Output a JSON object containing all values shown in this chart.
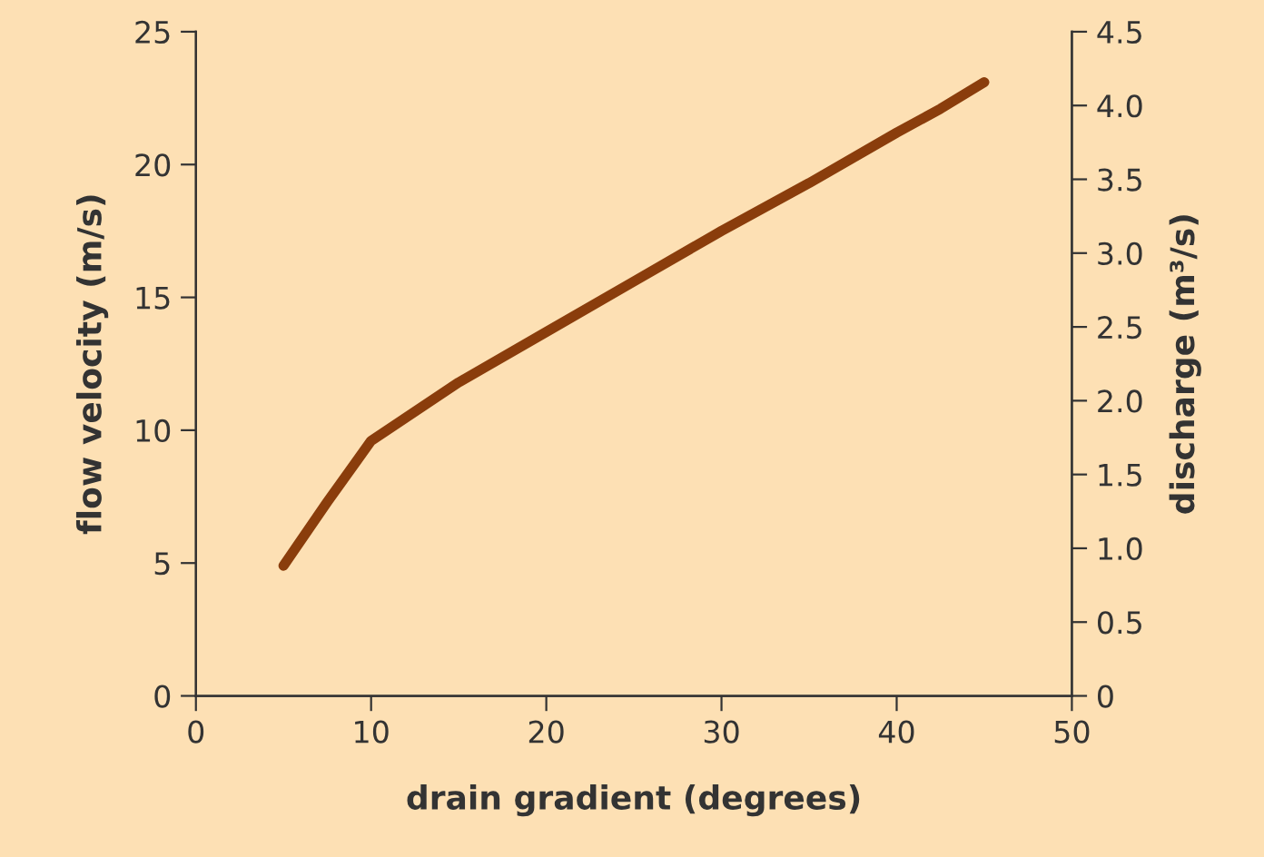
{
  "chart_data": {
    "type": "line",
    "xlabel": "drain gradient (degrees)",
    "ylabel": "flow velocity (m/s)",
    "y2label": "discharge (m³/s)",
    "x": [
      5,
      7.5,
      10,
      15,
      20,
      25,
      30,
      35,
      40,
      42.5,
      45
    ],
    "series": [
      {
        "color": "#8a3d0c",
        "values": [
          4.9,
          7.3,
          9.6,
          11.8,
          13.7,
          15.6,
          17.5,
          19.3,
          21.2,
          22.1,
          23.1
        ]
      }
    ],
    "xlim": [
      0,
      50
    ],
    "xticks": [
      0,
      10,
      20,
      30,
      40,
      50
    ],
    "ylim": [
      0,
      25
    ],
    "yticks": [
      0,
      5,
      10,
      15,
      20,
      25
    ],
    "y2lim": [
      0,
      4.5
    ],
    "y2ticks": [
      0,
      {
        "value": 0.5,
        "label": "0.5"
      },
      {
        "value": 1,
        "label": "1.0"
      },
      {
        "value": 1.5,
        "label": "1.5"
      },
      {
        "value": 2,
        "label": "2.0"
      },
      {
        "value": 2.5,
        "label": "2.5"
      },
      {
        "value": 3,
        "label": "3.0"
      },
      {
        "value": 3.5,
        "label": "3.5"
      },
      {
        "value": 4,
        "label": "4.0"
      },
      {
        "value": 4.5,
        "label": "4.5"
      }
    ],
    "grid": false,
    "legend": false,
    "marker": "none",
    "line_style": "solid"
  }
}
